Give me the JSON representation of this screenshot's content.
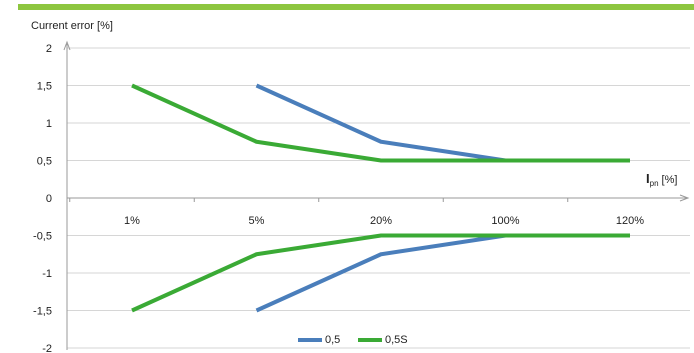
{
  "chart_data": {
    "type": "line",
    "title": "",
    "ylabel": "Current error [%]",
    "xlabel": {
      "symbol": "I",
      "subscript": "pn",
      "unit": "[%]"
    },
    "categories": [
      "1%",
      "5%",
      "20%",
      "100%",
      "120%"
    ],
    "yticks": [
      "2",
      "1,5",
      "1",
      "0,5",
      "0",
      "-0,5",
      "-1",
      "-1,5",
      "-2"
    ],
    "ylim": [
      -2,
      2
    ],
    "grid": true,
    "legend_position": "bottom",
    "series": [
      {
        "name": "0,5",
        "color": "#4a7ebb",
        "upper": [
          null,
          1.5,
          0.75,
          0.5,
          0.5
        ],
        "lower": [
          null,
          -1.5,
          -0.75,
          -0.5,
          -0.5
        ]
      },
      {
        "name": "0,5S",
        "color": "#3aaa35",
        "upper": [
          1.5,
          0.75,
          0.5,
          0.5,
          0.5
        ],
        "lower": [
          -1.5,
          -0.75,
          -0.5,
          -0.5,
          -0.5
        ]
      }
    ]
  }
}
